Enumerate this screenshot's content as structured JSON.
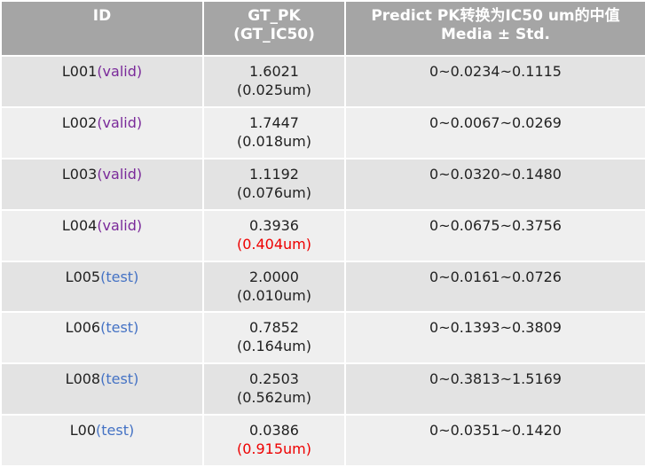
{
  "headers": {
    "id": "ID",
    "gt_line1": "GT_PK",
    "gt_line2": "(GT_IC50)",
    "pred_line1": "Predict PK转换为IC50 um的中值",
    "pred_line2": "Media ± Std."
  },
  "rows": [
    {
      "id": "L001",
      "tag": "(valid)",
      "gt": "1.6021",
      "ic50": "(0.025um)",
      "pred": "0~0.0234~0.1115"
    },
    {
      "id": "L002",
      "tag": "(valid)",
      "gt": "1.7447",
      "ic50": "(0.018um)",
      "pred": "0~0.0067~0.0269"
    },
    {
      "id": "L003",
      "tag": "(valid)",
      "gt": "1.1192",
      "ic50": "(0.076um)",
      "pred": "0~0.0320~0.1480"
    },
    {
      "id": "L004",
      "tag": "(valid)",
      "gt": "0.3936",
      "ic50": "(0.404um)",
      "pred": "0~0.0675~0.3756"
    },
    {
      "id": "L005",
      "tag": "(test)",
      "gt": "2.0000",
      "ic50": "(0.010um)",
      "pred": "0~0.0161~0.0726"
    },
    {
      "id": "L006",
      "tag": "(test)",
      "gt": "0.7852",
      "ic50": "(0.164um)",
      "pred": "0~0.1393~0.3809"
    },
    {
      "id": "L008",
      "tag": "(test)",
      "gt": "0.2503",
      "ic50": "(0.562um)",
      "pred": "0~0.3813~1.5169"
    },
    {
      "id": "L00",
      "tag": "(test)",
      "gt": "0.0386",
      "ic50": "(0.915um)",
      "pred": "0~0.0351~0.1420"
    }
  ],
  "colors": {
    "header_bg": "#a5a5a5",
    "row_odd_bg": "#e3e3e3",
    "row_even_bg": "#efefef",
    "valid_tag": "#7a2a9a",
    "test_tag": "#4472c4",
    "highlight_red": "#ee0000"
  }
}
